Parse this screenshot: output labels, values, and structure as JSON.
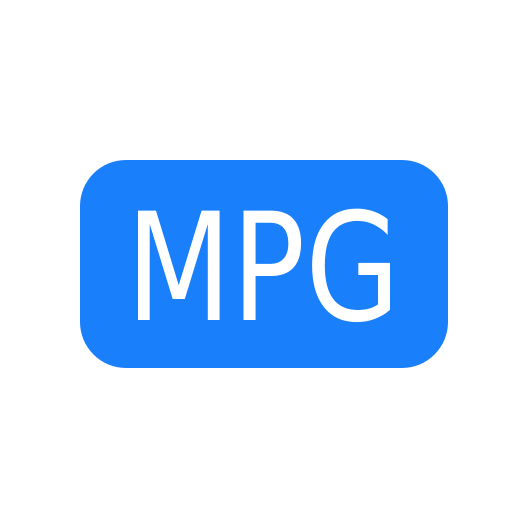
{
  "icon": {
    "label": "MPG"
  }
}
